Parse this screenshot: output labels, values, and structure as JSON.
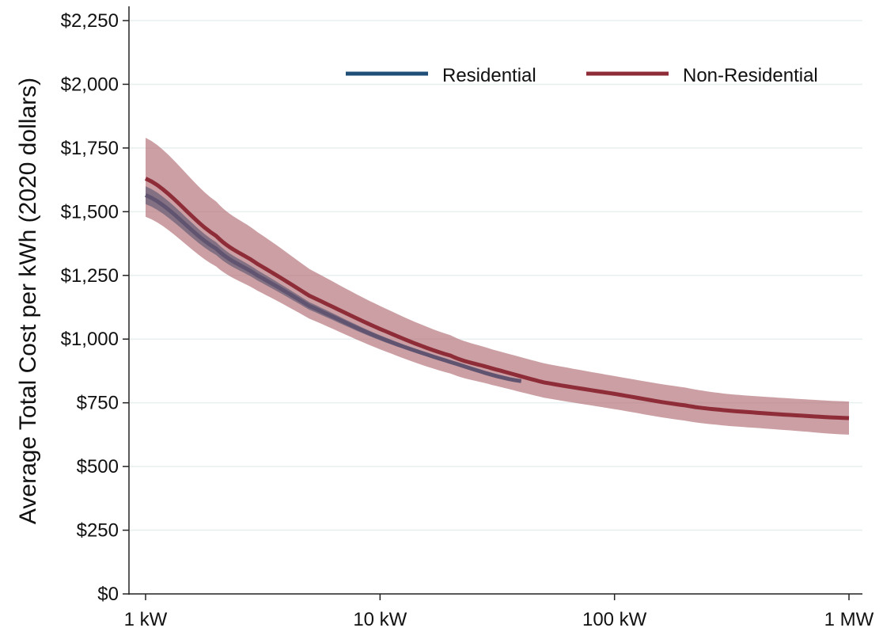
{
  "chart_data": {
    "type": "line",
    "title": "",
    "xlabel": "",
    "ylabel": "Average Total Cost per kWh (2020 dollars)",
    "x_scale": "log",
    "xlim": [
      1,
      1000
    ],
    "ylim": [
      0,
      2250
    ],
    "x_ticks": [
      {
        "value": 1,
        "label": "1 kW"
      },
      {
        "value": 10,
        "label": "10 kW"
      },
      {
        "value": 100,
        "label": "100 kW"
      },
      {
        "value": 1000,
        "label": "1 MW"
      }
    ],
    "y_ticks": [
      {
        "value": 0,
        "label": "$0"
      },
      {
        "value": 250,
        "label": "$250"
      },
      {
        "value": 500,
        "label": "$500"
      },
      {
        "value": 750,
        "label": "$750"
      },
      {
        "value": 1000,
        "label": "$1,000"
      },
      {
        "value": 1250,
        "label": "$1,250"
      },
      {
        "value": 1500,
        "label": "$1,500"
      },
      {
        "value": 1750,
        "label": "$1,750"
      },
      {
        "value": 2000,
        "label": "$2,000"
      },
      {
        "value": 2250,
        "label": "$2,250"
      }
    ],
    "grid": "horizontal",
    "legend_position": "top-right",
    "series": [
      {
        "name": "Non-Residential",
        "color": "#8e2c38",
        "band_color": "#b5767c",
        "x": [
          1,
          2,
          3,
          5,
          10,
          20,
          30,
          50,
          100,
          200,
          300,
          500,
          1000
        ],
        "y": [
          1630,
          1405,
          1295,
          1170,
          1040,
          935,
          885,
          830,
          785,
          740,
          720,
          705,
          690
        ],
        "lower": [
          1480,
          1285,
          1190,
          1080,
          960,
          865,
          820,
          770,
          725,
          680,
          660,
          645,
          625
        ],
        "upper": [
          1790,
          1540,
          1420,
          1275,
          1130,
          1015,
          960,
          905,
          855,
          810,
          785,
          770,
          755
        ]
      },
      {
        "name": "Residential",
        "color": "#1f4e79",
        "band_color": "#6b6078",
        "x": [
          1,
          2,
          3,
          5,
          10,
          20,
          40
        ],
        "y": [
          1565,
          1355,
          1250,
          1130,
          1005,
          910,
          835
        ],
        "lower": [
          1530,
          1330,
          1230,
          1115,
          995,
          905,
          830
        ],
        "upper": [
          1600,
          1380,
          1270,
          1145,
          1015,
          915,
          840
        ]
      }
    ],
    "colors": {
      "axis": "#222222",
      "grid": "#e8efef",
      "residential_legend": "#1f4e79",
      "nonresidential_legend": "#8e2c38"
    }
  }
}
